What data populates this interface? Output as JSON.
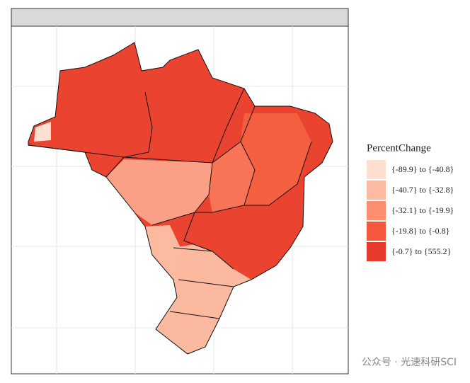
{
  "legend": {
    "title": "PercentChange",
    "items": [
      {
        "label": "{-89.9} to {-40.8}",
        "color": "#fde0d2"
      },
      {
        "label": "{-40.7} to {-32.8}",
        "color": "#fcbba1"
      },
      {
        "label": "{-32.1} to {-19.9}",
        "color": "#fc8d6e"
      },
      {
        "label": "{-19.8} to {-0.8}",
        "color": "#f6583e"
      },
      {
        "label": "{-0.7} to {555.2}",
        "color": "#e63a2c"
      }
    ]
  },
  "watermark": "公众号 · 光速科研SCI"
}
